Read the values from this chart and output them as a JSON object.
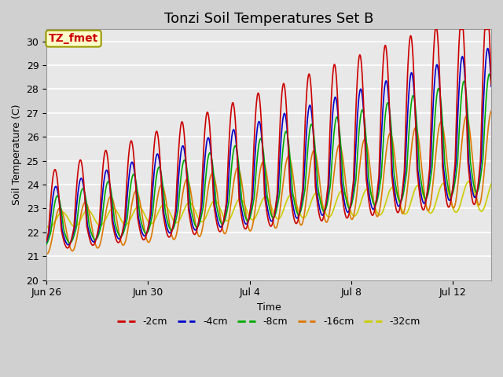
{
  "title": "Tonzi Soil Temperatures Set B",
  "xlabel": "Time",
  "ylabel": "Soil Temperature (C)",
  "ylim": [
    20.0,
    30.5
  ],
  "yticks": [
    20.0,
    21.0,
    22.0,
    23.0,
    24.0,
    25.0,
    26.0,
    27.0,
    28.0,
    29.0,
    30.0
  ],
  "xtick_labels": [
    "Jun 26",
    "Jun 30",
    "Jul 4",
    "Jul 8",
    "Jul 12"
  ],
  "xtick_days": [
    0,
    4,
    8,
    12,
    16
  ],
  "n_days": 17.5,
  "series": {
    "-2cm": {
      "color": "#cc0000",
      "lw": 1.2
    },
    "-4cm": {
      "color": "#0000cc",
      "lw": 1.2
    },
    "-8cm": {
      "color": "#00aa00",
      "lw": 1.2
    },
    "-16cm": {
      "color": "#dd7700",
      "lw": 1.2
    },
    "-32cm": {
      "color": "#cccc00",
      "lw": 1.2
    }
  },
  "annotation_text": "TZ_fmet",
  "annotation_color": "#cc0000",
  "annotation_bg": "#ffffcc",
  "annotation_border": "#999900",
  "fig_bg": "#d0d0d0",
  "plot_bg": "#e8e8e8",
  "grid_color": "#ffffff",
  "title_fontsize": 13,
  "label_fontsize": 9,
  "tick_fontsize": 9,
  "legend_fontsize": 9
}
